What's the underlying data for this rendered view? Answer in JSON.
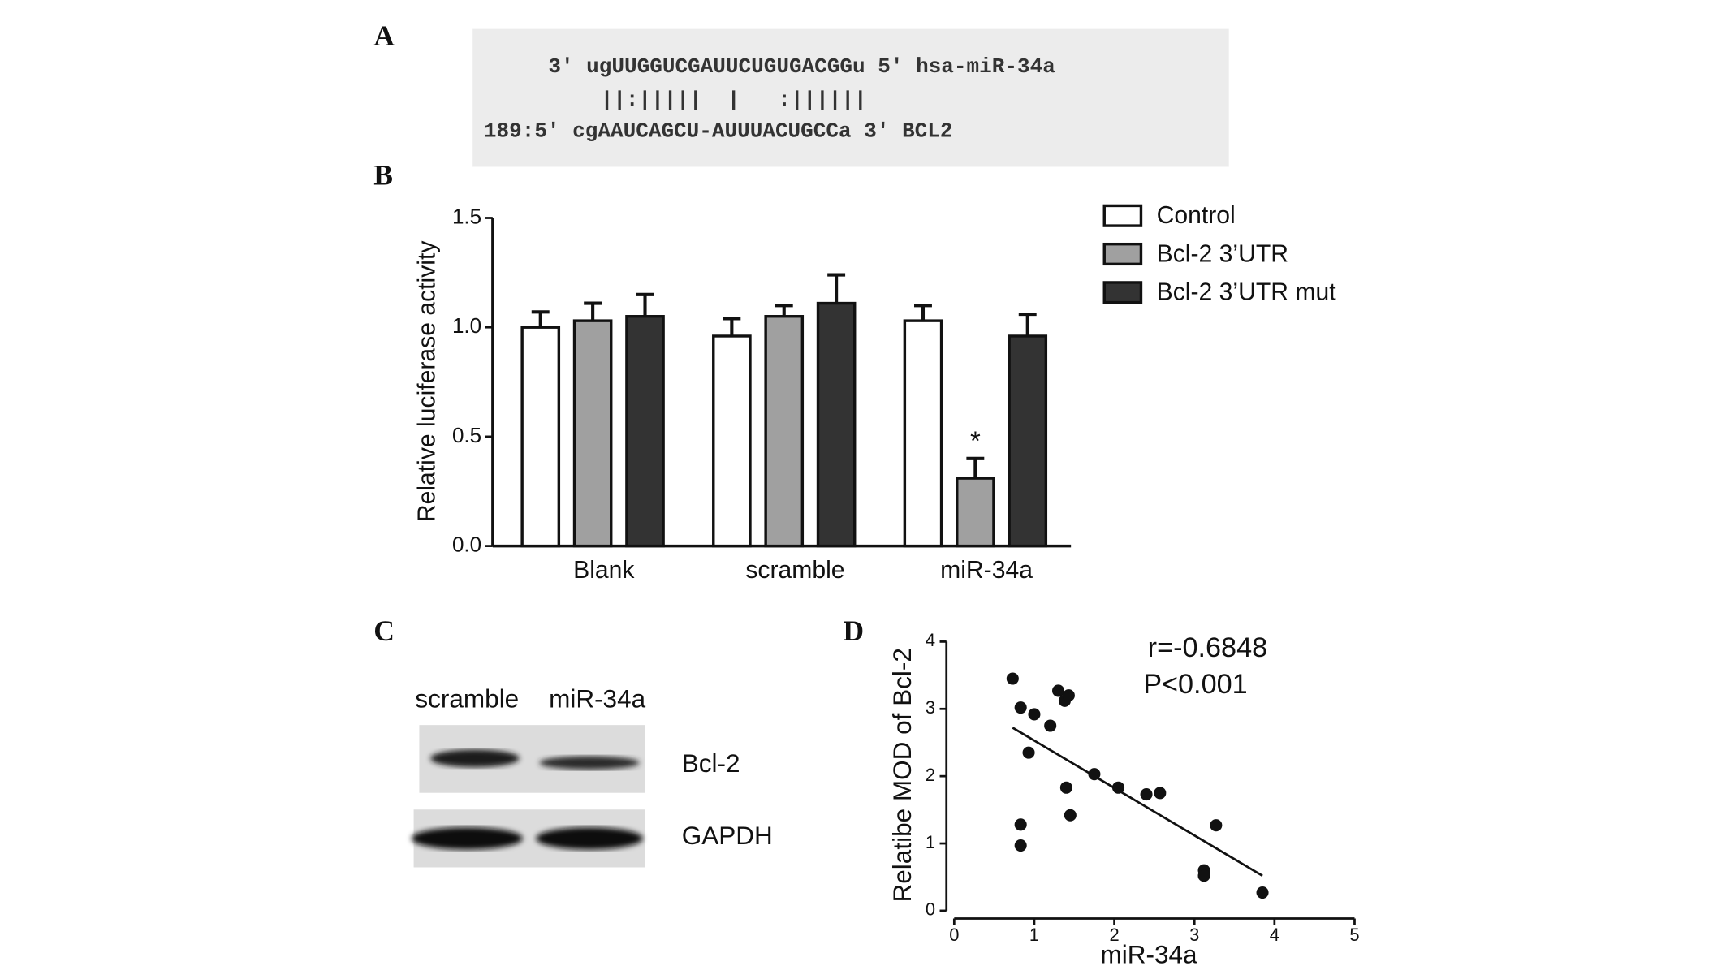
{
  "panel_labels": [
    "A",
    "B",
    "C",
    "D"
  ],
  "alignment": {
    "lines": [
      "3' ugUUGGUCGAUUCUGUGACGGu 5' hsa-miR-34a",
      "||:|||||  |   :||||||",
      "189:5' cgAAUCAGCU-AUUUACUGCCa 3' BCL2"
    ]
  },
  "blot": {
    "lanes": [
      "scramble",
      "miR-34a"
    ],
    "rows": [
      "Bcl-2",
      "GAPDH"
    ]
  },
  "chart_data": [
    {
      "type": "bar",
      "ylabel": "Relative luciferase activity",
      "categories": [
        "Blank",
        "scramble",
        "miR-34a"
      ],
      "series": [
        {
          "name": "Control",
          "color": "#ffffff",
          "values": [
            1.0,
            0.96,
            1.03
          ],
          "errors": [
            0.07,
            0.08,
            0.07
          ]
        },
        {
          "name": "Bcl-2 3’UTR",
          "color": "#a0a0a0",
          "values": [
            1.03,
            1.05,
            0.31
          ],
          "errors": [
            0.08,
            0.05,
            0.09
          ]
        },
        {
          "name": "Bcl-2 3’UTR mut",
          "color": "#333333",
          "values": [
            1.05,
            1.11,
            0.96
          ],
          "errors": [
            0.1,
            0.13,
            0.1
          ]
        }
      ],
      "annotation": "*",
      "ylim": [
        0,
        1.5
      ],
      "yticks": [
        {
          "value": 0,
          "label": "0.0"
        },
        {
          "value": 0.5,
          "label": "0.5"
        },
        {
          "value": 1,
          "label": "1.0"
        },
        {
          "value": 1.5,
          "label": "1.5"
        }
      ],
      "legend": "right"
    },
    {
      "type": "scatter",
      "xlabel": "miR-34a",
      "ylabel": "Relatibe MOD of Bcl-2",
      "annotations": [
        "r=-0.6848",
        "P<0.001"
      ],
      "color": "#111111",
      "x": [
        0.73,
        0.83,
        1.0,
        1.2,
        1.3,
        1.38,
        1.43,
        0.93,
        1.75,
        2.05,
        2.4,
        2.57,
        1.4,
        1.45,
        0.83,
        0.83,
        3.12,
        3.12,
        3.27,
        3.85
      ],
      "y": [
        3.45,
        3.02,
        2.92,
        2.75,
        3.27,
        3.12,
        3.2,
        2.35,
        2.03,
        1.83,
        1.73,
        1.75,
        1.83,
        1.42,
        1.28,
        0.97,
        0.6,
        0.52,
        1.27,
        0.27
      ],
      "trend_line": {
        "x": [
          0.73,
          3.85
        ],
        "y": [
          2.72,
          0.52
        ]
      },
      "xlim": [
        0,
        5
      ],
      "ylim": [
        0,
        4
      ],
      "xticks": [
        0,
        1,
        2,
        3,
        4,
        5
      ],
      "yticks": [
        0,
        1,
        2,
        3,
        4
      ]
    }
  ]
}
